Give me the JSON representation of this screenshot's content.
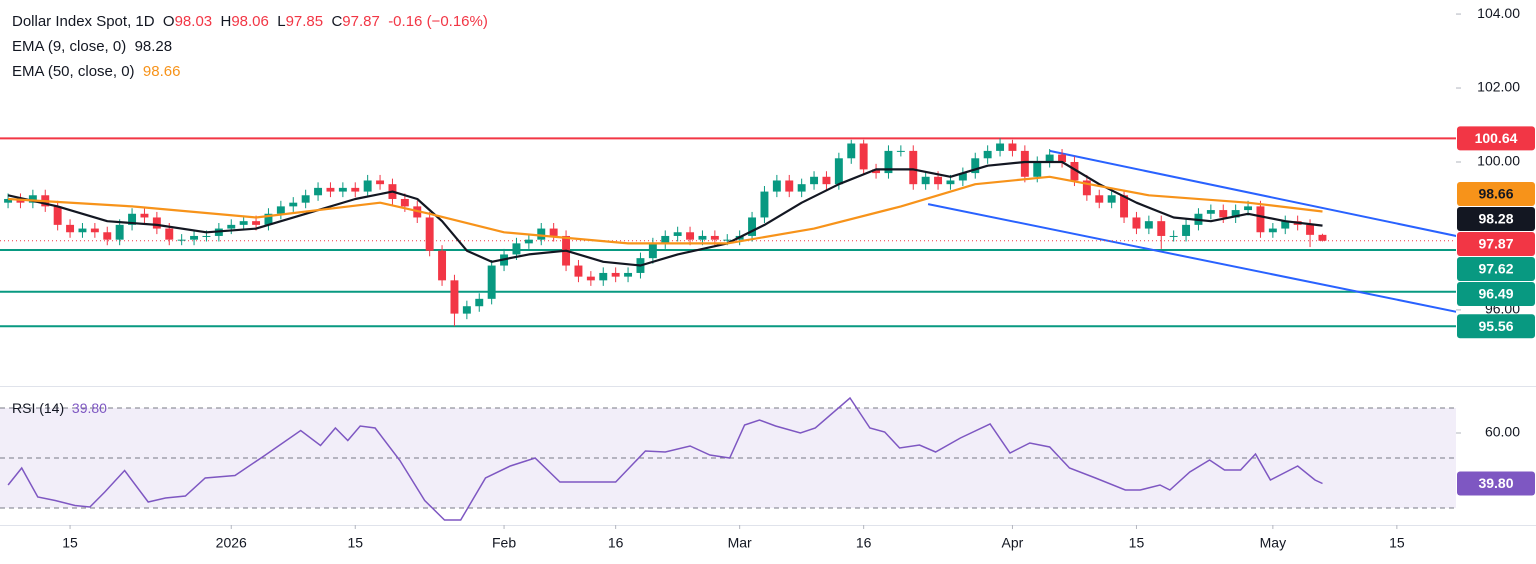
{
  "chart_data": [
    {
      "type": "candlestick",
      "title": "Dollar Index Spot, 1D",
      "ohlc_labels": [
        "O",
        "H",
        "L",
        "C"
      ],
      "change": -0.16,
      "change_pct": "(−0.16%)",
      "color_up": "#089981",
      "color_down": "#f23645",
      "open": [
        98.9,
        99.0,
        98.9,
        99.1,
        98.8,
        98.3,
        98.1,
        98.2,
        98.1,
        97.9,
        98.3,
        98.6,
        98.5,
        98.2,
        97.9,
        97.9,
        98.0,
        98.0,
        98.2,
        98.3,
        98.4,
        98.3,
        98.6,
        98.8,
        98.9,
        99.1,
        99.3,
        99.2,
        99.3,
        99.2,
        99.5,
        99.4,
        99.0,
        98.8,
        98.5,
        97.6,
        96.8,
        95.9,
        96.1,
        96.3,
        97.2,
        97.5,
        97.8,
        97.9,
        98.2,
        98.0,
        97.2,
        96.9,
        96.8,
        97.0,
        96.9,
        97.0,
        97.4,
        97.8,
        98.0,
        98.1,
        97.9,
        98.0,
        97.9,
        97.9,
        98.0,
        98.5,
        99.2,
        99.5,
        99.2,
        99.4,
        99.6,
        99.4,
        100.1,
        100.5,
        99.8,
        99.7,
        100.3,
        100.3,
        99.4,
        99.6,
        99.4,
        99.5,
        99.7,
        100.1,
        100.3,
        100.5,
        100.3,
        99.6,
        100.0,
        100.2,
        100.0,
        99.5,
        99.1,
        98.9,
        99.1,
        98.5,
        98.2,
        98.4,
        98.0,
        98.0,
        98.3,
        98.6,
        98.7,
        98.5,
        98.7,
        98.8,
        98.1,
        98.2,
        98.4,
        98.3,
        98.03
      ],
      "high": [
        99.15,
        99.15,
        99.25,
        99.25,
        98.95,
        98.45,
        98.35,
        98.35,
        98.25,
        98.45,
        98.75,
        98.75,
        98.65,
        98.35,
        98.05,
        98.15,
        98.15,
        98.35,
        98.45,
        98.55,
        98.55,
        98.75,
        98.95,
        99.05,
        99.25,
        99.45,
        99.45,
        99.45,
        99.45,
        99.65,
        99.65,
        99.55,
        99.15,
        98.95,
        98.65,
        97.75,
        96.95,
        96.25,
        96.45,
        97.35,
        97.65,
        97.95,
        98.05,
        98.35,
        98.35,
        98.15,
        97.35,
        97.05,
        97.15,
        97.15,
        97.15,
        97.55,
        97.95,
        98.15,
        98.25,
        98.25,
        98.15,
        98.15,
        98.05,
        98.15,
        98.65,
        99.35,
        99.65,
        99.65,
        99.55,
        99.75,
        99.75,
        100.25,
        100.6,
        100.6,
        99.95,
        100.45,
        100.45,
        100.45,
        99.75,
        99.75,
        99.65,
        99.85,
        100.25,
        100.45,
        100.64,
        100.6,
        100.45,
        100.15,
        100.35,
        100.35,
        100.15,
        99.65,
        99.25,
        99.25,
        99.25,
        98.65,
        98.55,
        98.55,
        98.15,
        98.45,
        98.75,
        98.85,
        98.85,
        98.85,
        98.95,
        98.95,
        98.35,
        98.55,
        98.55,
        98.45,
        98.06
      ],
      "low": [
        98.75,
        98.75,
        98.75,
        98.65,
        98.15,
        97.95,
        97.95,
        97.95,
        97.75,
        97.75,
        98.15,
        98.35,
        98.05,
        97.75,
        97.75,
        97.75,
        97.85,
        97.85,
        98.05,
        98.15,
        98.15,
        98.15,
        98.45,
        98.65,
        98.75,
        98.95,
        99.05,
        99.05,
        99.05,
        99.05,
        99.25,
        98.85,
        98.65,
        98.35,
        97.45,
        96.65,
        95.56,
        95.75,
        95.95,
        96.15,
        97.05,
        97.35,
        97.65,
        97.75,
        97.85,
        97.05,
        96.75,
        96.65,
        96.65,
        96.75,
        96.75,
        96.85,
        97.25,
        97.65,
        97.85,
        97.75,
        97.75,
        97.75,
        97.75,
        97.75,
        97.85,
        98.35,
        99.05,
        99.05,
        99.05,
        99.25,
        99.25,
        99.25,
        99.95,
        99.65,
        99.55,
        99.55,
        100.15,
        99.25,
        99.25,
        99.25,
        99.25,
        99.35,
        99.55,
        99.95,
        100.15,
        100.15,
        99.45,
        99.45,
        99.85,
        99.85,
        99.35,
        98.95,
        98.75,
        98.75,
        98.35,
        98.05,
        98.05,
        97.65,
        97.85,
        97.85,
        98.15,
        98.45,
        98.35,
        98.35,
        98.55,
        97.95,
        97.95,
        98.05,
        98.15,
        97.7,
        97.85
      ],
      "close": [
        99.0,
        98.9,
        99.1,
        98.8,
        98.3,
        98.1,
        98.2,
        98.1,
        97.9,
        98.3,
        98.6,
        98.5,
        98.2,
        97.9,
        97.9,
        98.0,
        98.0,
        98.2,
        98.3,
        98.4,
        98.3,
        98.6,
        98.8,
        98.9,
        99.1,
        99.3,
        99.2,
        99.3,
        99.2,
        99.5,
        99.4,
        99.0,
        98.8,
        98.5,
        97.6,
        96.8,
        95.9,
        96.1,
        96.3,
        97.2,
        97.5,
        97.8,
        97.9,
        98.2,
        98.0,
        97.2,
        96.9,
        96.8,
        97.0,
        96.9,
        97.0,
        97.4,
        97.8,
        98.0,
        98.1,
        97.9,
        98.0,
        97.9,
        97.9,
        98.0,
        98.5,
        99.2,
        99.5,
        99.2,
        99.4,
        99.6,
        99.4,
        100.1,
        100.5,
        99.8,
        99.7,
        100.3,
        100.3,
        99.4,
        99.6,
        99.4,
        99.5,
        99.7,
        100.1,
        100.3,
        100.5,
        100.3,
        99.6,
        100.0,
        100.2,
        100.0,
        99.5,
        99.1,
        98.9,
        99.1,
        98.5,
        98.2,
        98.4,
        98.0,
        98.0,
        98.3,
        98.6,
        98.7,
        98.5,
        98.7,
        98.8,
        98.1,
        98.2,
        98.4,
        98.3,
        98.03,
        97.87
      ],
      "xlim": [
        -0.65,
        116.77
      ],
      "ylim": [
        93.97,
        104.38
      ],
      "yticks": [
        {
          "value": 104,
          "label": "104.00"
        },
        {
          "value": 102,
          "label": "102.00"
        },
        {
          "value": 100,
          "label": "100.00"
        },
        {
          "value": 96,
          "label": "96.00"
        }
      ],
      "series": [
        {
          "name": "EMA (9, close, 0)",
          "color": "#131722",
          "x": [
            0,
            4,
            8,
            12,
            16,
            20,
            24,
            28,
            31,
            33,
            35,
            37,
            39,
            42,
            45,
            48,
            51,
            54,
            58,
            61,
            64,
            67,
            70,
            73,
            76,
            79,
            82,
            85,
            88,
            91,
            94,
            97,
            100,
            103,
            106
          ],
          "values": [
            99.1,
            98.8,
            98.4,
            98.3,
            98.1,
            98.2,
            98.6,
            99.0,
            99.2,
            99.0,
            98.4,
            97.6,
            97.3,
            97.5,
            97.6,
            97.3,
            97.2,
            97.5,
            97.8,
            98.3,
            98.9,
            99.4,
            99.8,
            99.8,
            99.6,
            99.9,
            100.0,
            100.0,
            99.4,
            98.9,
            98.5,
            98.4,
            98.6,
            98.4,
            98.28
          ]
        },
        {
          "name": "EMA (50, close, 0)",
          "color": "#f7931a",
          "x": [
            0,
            10,
            20,
            30,
            34,
            40,
            50,
            58,
            65,
            72,
            78,
            84,
            92,
            100,
            106
          ],
          "values": [
            99.0,
            98.8,
            98.5,
            98.9,
            98.6,
            98.1,
            97.8,
            97.8,
            98.2,
            98.8,
            99.4,
            99.6,
            99.1,
            98.9,
            98.66
          ]
        }
      ],
      "levels": [
        {
          "value": 100.64,
          "color": "#f23645"
        },
        {
          "value": 97.62,
          "color": "#089981"
        },
        {
          "value": 96.49,
          "color": "#089981"
        },
        {
          "value": 95.56,
          "color": "#089981"
        }
      ],
      "trendlines": [
        {
          "color": "#2962ff",
          "x": [
            84,
            116.8
          ],
          "values": [
            100.3,
            98.0
          ]
        },
        {
          "color": "#2962ff",
          "x": [
            74.2,
            116.8
          ],
          "values": [
            98.86,
            95.95
          ]
        }
      ]
    },
    {
      "type": "line",
      "title": "RSI (14)",
      "color": "#7e57c2",
      "current": {
        "value": 39.8,
        "label": "39.80"
      },
      "x": [
        0,
        1.1,
        2.4,
        3.8,
        5.4,
        6.6,
        7.8,
        9.4,
        11.3,
        12.7,
        14.3,
        15.9,
        18.3,
        20.7,
        23.6,
        25.2,
        26.4,
        27.4,
        28.4,
        29.6,
        31.6,
        33.6,
        35.2,
        36.5,
        38.5,
        40.5,
        42.5,
        44.5,
        46.9,
        49,
        51.4,
        53,
        55,
        56.6,
        58.2,
        59.4,
        60.6,
        61.9,
        63.9,
        65.1,
        67.9,
        69.5,
        70.7,
        71.9,
        73.5,
        74.8,
        76.8,
        79.2,
        80.8,
        82.4,
        84,
        85.6,
        87.7,
        90.1,
        91.3,
        92.9,
        93.7,
        95.3,
        96.9,
        98.1,
        99.4,
        100.6,
        101.8,
        104,
        105.4,
        106
      ],
      "values": [
        39.2,
        46,
        34.4,
        33,
        31,
        30.4,
        36.4,
        45,
        32.4,
        34,
        34.8,
        42,
        43,
        51,
        61,
        55,
        62,
        57,
        62.8,
        62,
        49,
        33,
        25.2,
        25.2,
        42,
        46.8,
        50,
        40.4,
        40.4,
        40.4,
        52.8,
        52.4,
        54.8,
        51.2,
        50,
        63.2,
        65.2,
        62.8,
        60,
        62,
        74,
        62,
        60.4,
        54,
        55.2,
        52.4,
        58,
        63.6,
        52,
        56,
        54.4,
        46,
        42,
        37.2,
        37.2,
        39.2,
        37.2,
        44.4,
        49.2,
        45.2,
        45.2,
        51.6,
        41.2,
        46.8,
        41.2,
        39.8
      ],
      "levels": [
        70,
        50,
        30
      ],
      "xlim": [
        -0.65,
        116.77
      ],
      "ylim": [
        23.2,
        75.2
      ],
      "yticks": [
        {
          "value": 60,
          "label": "60.00"
        }
      ],
      "xticks": [
        {
          "value": 5,
          "label": "15"
        },
        {
          "value": 18,
          "label": "2026"
        },
        {
          "value": 28,
          "label": "15"
        },
        {
          "value": 40,
          "label": "Feb"
        },
        {
          "value": 49,
          "label": "16"
        },
        {
          "value": 59,
          "label": "Mar"
        },
        {
          "value": 69,
          "label": "16"
        },
        {
          "value": 81,
          "label": "Apr"
        },
        {
          "value": 91,
          "label": "15"
        },
        {
          "value": 102,
          "label": "May"
        },
        {
          "value": 112,
          "label": "15"
        }
      ]
    }
  ]
}
